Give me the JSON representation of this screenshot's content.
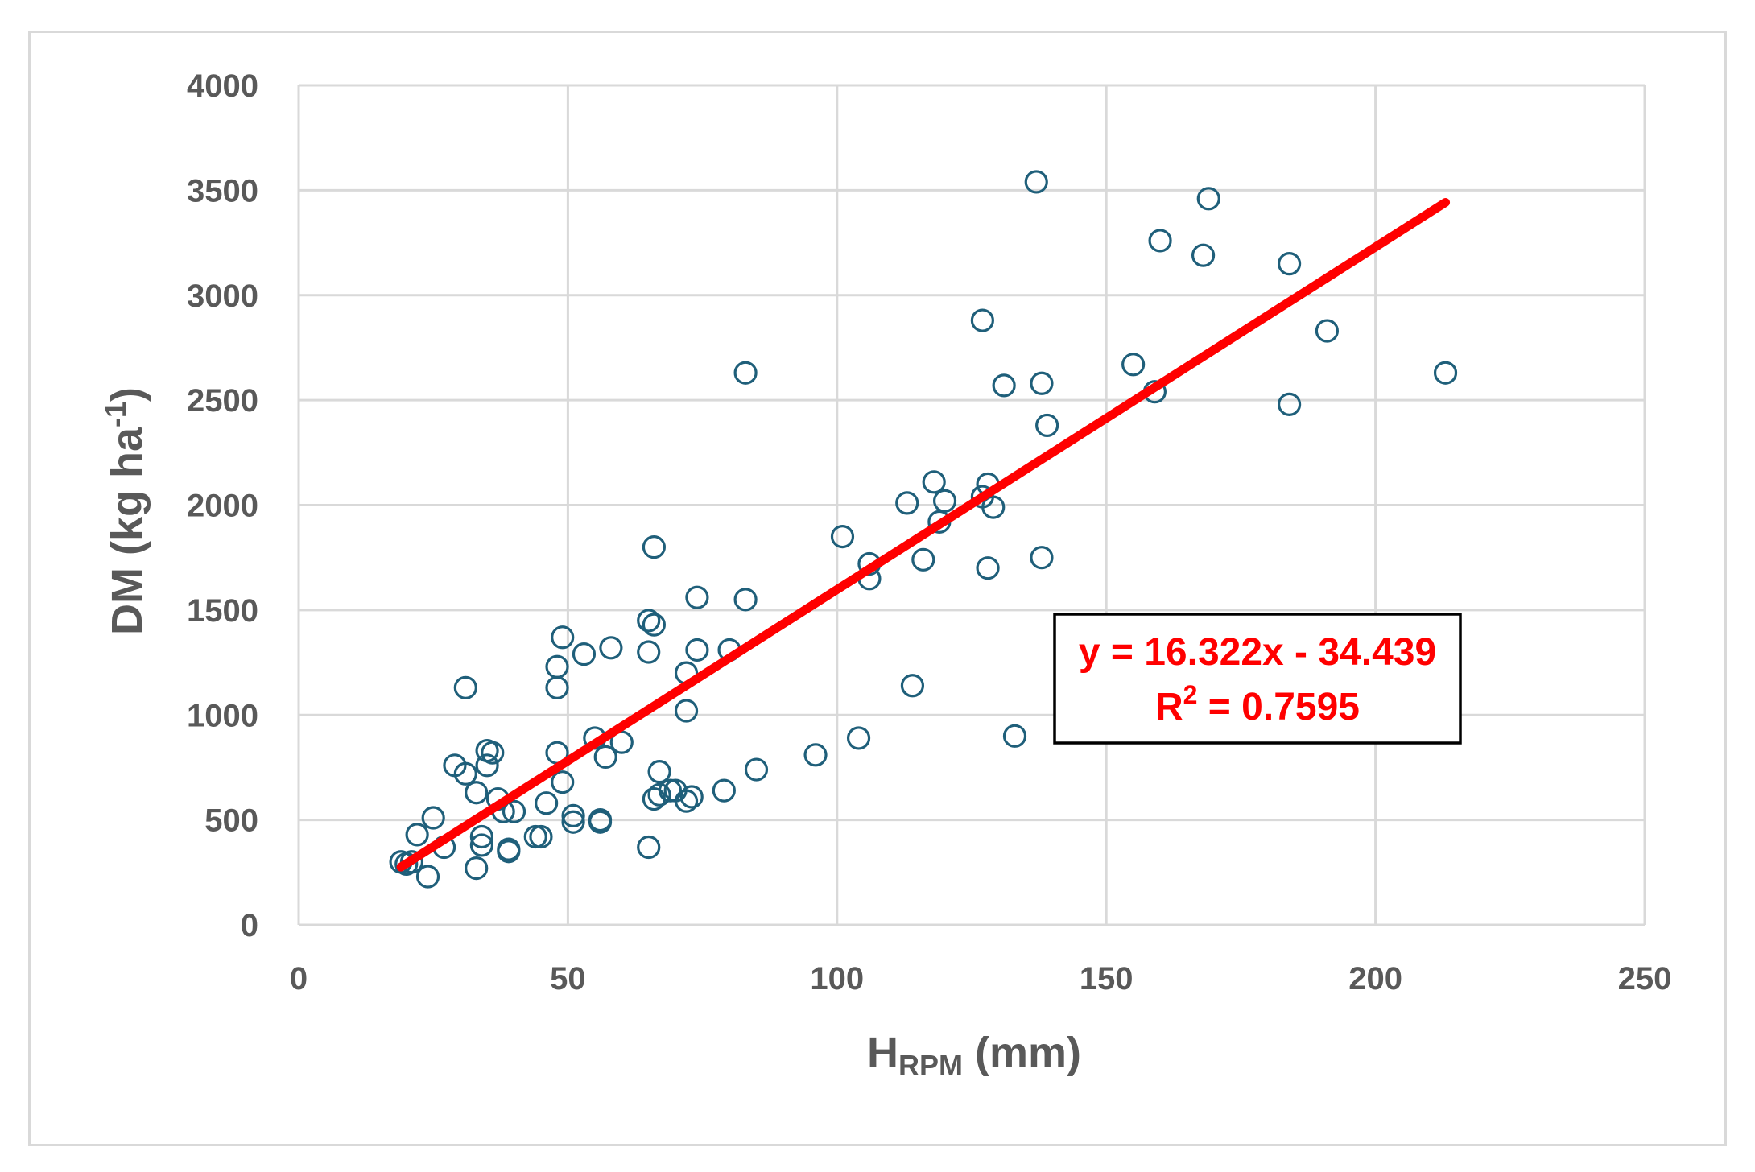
{
  "chart_data": {
    "type": "scatter",
    "xlabel_main": "H",
    "xlabel_sub": "RPM",
    "xlabel_unit": " (mm)",
    "ylabel_main": "DM (kg ha",
    "ylabel_sup": "-1",
    "ylabel_end": ")",
    "xlim": [
      0,
      250
    ],
    "ylim": [
      0,
      4000
    ],
    "x_ticks": [
      0,
      50,
      100,
      150,
      200,
      250
    ],
    "y_ticks": [
      0,
      500,
      1000,
      1500,
      2000,
      2500,
      3000,
      3500,
      4000
    ],
    "grid": true,
    "marker": "open-circle",
    "colors": {
      "points": "#1f5f7a",
      "trendline": "#ff0000",
      "grid": "#d9d9d9",
      "text": "#595959"
    },
    "points": [
      [
        19,
        300
      ],
      [
        20,
        290
      ],
      [
        21,
        300
      ],
      [
        22,
        430
      ],
      [
        24,
        230
      ],
      [
        25,
        510
      ],
      [
        27,
        370
      ],
      [
        29,
        760
      ],
      [
        31,
        1130
      ],
      [
        31,
        720
      ],
      [
        33,
        630
      ],
      [
        33,
        270
      ],
      [
        34,
        380
      ],
      [
        34,
        420
      ],
      [
        35,
        830
      ],
      [
        35,
        760
      ],
      [
        36,
        820
      ],
      [
        37,
        600
      ],
      [
        38,
        540
      ],
      [
        39,
        360
      ],
      [
        39,
        350
      ],
      [
        40,
        540
      ],
      [
        44,
        420
      ],
      [
        45,
        420
      ],
      [
        46,
        580
      ],
      [
        48,
        1230
      ],
      [
        48,
        820
      ],
      [
        48,
        1130
      ],
      [
        49,
        1370
      ],
      [
        49,
        680
      ],
      [
        51,
        520
      ],
      [
        51,
        490
      ],
      [
        53,
        1290
      ],
      [
        55,
        890
      ],
      [
        56,
        500
      ],
      [
        56,
        490
      ],
      [
        57,
        800
      ],
      [
        58,
        1320
      ],
      [
        60,
        870
      ],
      [
        65,
        1300
      ],
      [
        65,
        370
      ],
      [
        65,
        1450
      ],
      [
        66,
        1430
      ],
      [
        66,
        1800
      ],
      [
        66,
        600
      ],
      [
        67,
        620
      ],
      [
        67,
        730
      ],
      [
        69,
        640
      ],
      [
        70,
        640
      ],
      [
        72,
        1020
      ],
      [
        72,
        590
      ],
      [
        72,
        1200
      ],
      [
        73,
        610
      ],
      [
        74,
        1560
      ],
      [
        74,
        1310
      ],
      [
        79,
        640
      ],
      [
        80,
        1310
      ],
      [
        83,
        2630
      ],
      [
        83,
        1550
      ],
      [
        85,
        740
      ],
      [
        96,
        810
      ],
      [
        101,
        1850
      ],
      [
        104,
        890
      ],
      [
        106,
        1720
      ],
      [
        106,
        1650
      ],
      [
        113,
        2010
      ],
      [
        114,
        1140
      ],
      [
        116,
        1740
      ],
      [
        118,
        2110
      ],
      [
        119,
        1920
      ],
      [
        120,
        2020
      ],
      [
        127,
        2880
      ],
      [
        127,
        2040
      ],
      [
        128,
        2100
      ],
      [
        128,
        1700
      ],
      [
        129,
        1990
      ],
      [
        131,
        2570
      ],
      [
        133,
        900
      ],
      [
        137,
        3540
      ],
      [
        138,
        2580
      ],
      [
        138,
        1750
      ],
      [
        139,
        2380
      ],
      [
        155,
        2670
      ],
      [
        159,
        2540
      ],
      [
        160,
        3260
      ],
      [
        168,
        3190
      ],
      [
        169,
        3460
      ],
      [
        184,
        3150
      ],
      [
        184,
        2480
      ],
      [
        191,
        2830
      ],
      [
        213,
        2630
      ]
    ],
    "trendline": {
      "x_start": 19,
      "x_end": 213,
      "slope": 16.322,
      "intercept": -34.439
    },
    "equation_line1": "y = 16.322x - 34.439",
    "equation_line2_main": "R",
    "equation_line2_sup": "2",
    "equation_line2_end": " = 0.7595"
  }
}
